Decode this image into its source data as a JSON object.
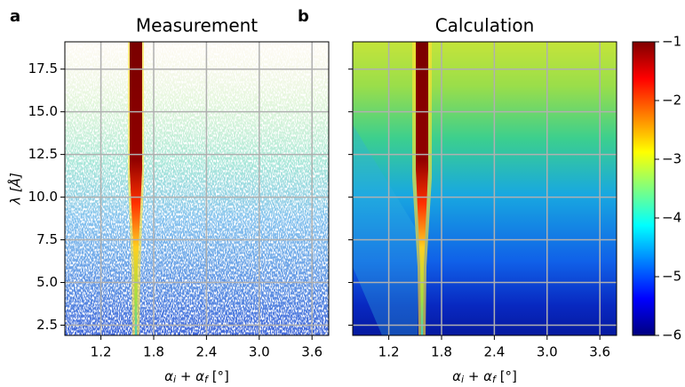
{
  "chart_data": [
    {
      "type": "heatmap",
      "panel": "a",
      "title": "Measurement",
      "xlabel": [
        "α",
        "i",
        " + ",
        "α",
        "f",
        " [°]"
      ],
      "ylabel": "λ [Å]",
      "xlim": [
        0.79,
        3.79
      ],
      "xticks": [
        1.2,
        1.8,
        2.4,
        {
          "value": 3,
          "label": "3.0"
        },
        3.6
      ],
      "ylim": [
        1.9,
        19.1
      ],
      "yticks": [
        2.5,
        {
          "value": 5,
          "label": "5.0"
        },
        7.5,
        {
          "value": 10,
          "label": "10.0"
        },
        12.5,
        {
          "value": 15,
          "label": "15.0"
        },
        17.5
      ],
      "grid": true,
      "colormap": "jet"
    },
    {
      "type": "heatmap",
      "panel": "b",
      "title": "Calculation",
      "xlabel": [
        "α",
        "i",
        " + ",
        "α",
        "f",
        " [°]"
      ],
      "xlim": [
        0.79,
        3.79
      ],
      "xticks": [
        1.2,
        1.8,
        2.4,
        {
          "value": 3,
          "label": "3.0"
        },
        3.6
      ],
      "ylim": [
        1.9,
        19.1
      ],
      "yticks": [
        2.5,
        5,
        7.5,
        10,
        12.5,
        15,
        17.5
      ],
      "grid": true,
      "colormap": "jet",
      "clim": [
        -6,
        -1
      ],
      "cticks": [
        {
          "value": -1,
          "label": "−1"
        },
        {
          "value": -2,
          "label": "−2"
        },
        {
          "value": -3,
          "label": "−3"
        },
        {
          "value": -4,
          "label": "−4"
        },
        {
          "value": -5,
          "label": "−5"
        },
        {
          "value": -6,
          "label": "−6"
        }
      ]
    }
  ]
}
